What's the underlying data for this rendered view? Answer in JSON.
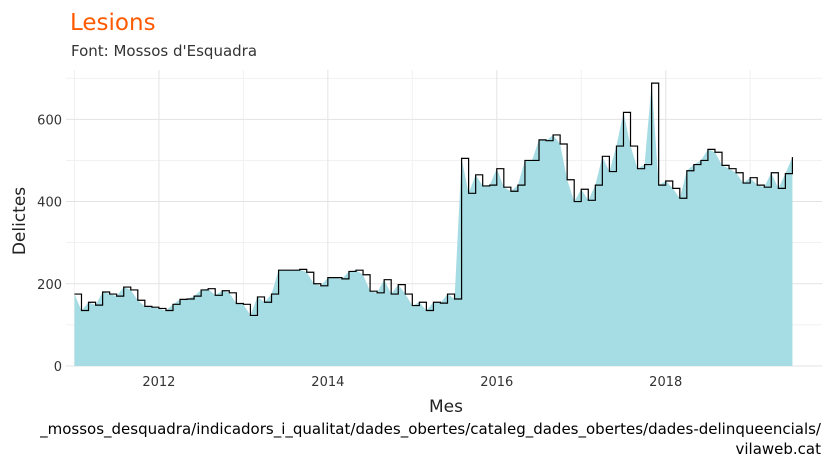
{
  "colors": {
    "title": "#ff5a00",
    "area_fill": "#a6dce3",
    "step_line": "#000000",
    "grid_major": "#e3e3e3",
    "grid_minor": "#f1f1f1"
  },
  "chart_data": {
    "type": "area",
    "title": "Lesions",
    "subtitle": "Font: Mossos d'Esquadra",
    "xlabel": "Mes",
    "ylabel": "Delictes",
    "xlim": [
      2010.9,
      2019.85
    ],
    "ylim": [
      0,
      720
    ],
    "x_ticks": [
      2012,
      2014,
      2016,
      2018
    ],
    "y_ticks": [
      0,
      200,
      400,
      600
    ],
    "grid": true,
    "legend": "none",
    "x_start": 2011.0,
    "x_step": 0.08333,
    "series": [
      {
        "style": "area-with-step-line",
        "values": [
          175,
          135,
          155,
          148,
          180,
          175,
          170,
          192,
          185,
          160,
          145,
          143,
          140,
          135,
          150,
          162,
          163,
          170,
          185,
          188,
          172,
          183,
          178,
          152,
          150,
          123,
          168,
          155,
          175,
          233,
          233,
          233,
          235,
          228,
          200,
          195,
          215,
          215,
          212,
          230,
          233,
          222,
          182,
          178,
          210,
          175,
          198,
          175,
          147,
          155,
          135,
          155,
          153,
          175,
          163,
          505,
          420,
          465,
          438,
          440,
          480,
          435,
          425,
          440,
          500,
          500,
          550,
          548,
          562,
          540,
          453,
          400,
          430,
          403,
          440,
          510,
          473,
          535,
          617,
          535,
          480,
          490,
          688,
          440,
          450,
          432,
          408,
          475,
          490,
          500,
          527,
          520,
          488,
          480,
          470,
          445,
          458,
          440,
          435,
          470,
          432,
          468,
          508
        ]
      }
    ],
    "caption": "_mossos_desquadra/indicadors_i_qualitat/dades_obertes/cataleg_dades_obertes/dades-delinqueencials/",
    "credit": "vilaweb.cat"
  }
}
